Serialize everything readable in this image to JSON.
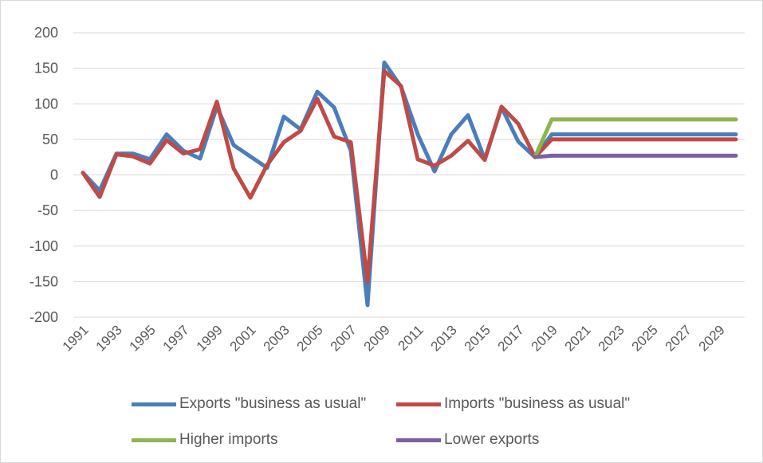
{
  "chart_data": {
    "type": "line",
    "title": "",
    "xlabel": "",
    "ylabel": "",
    "ylim": [
      -200,
      200
    ],
    "yticks": [
      200,
      150,
      100,
      50,
      0,
      -50,
      -100,
      -150,
      -200
    ],
    "x_tick_labels": [
      "1991",
      "1993",
      "1995",
      "1997",
      "1999",
      "2001",
      "2003",
      "2005",
      "2007",
      "2009",
      "2011",
      "2013",
      "2015",
      "2017",
      "2019",
      "2021",
      "2023",
      "2025",
      "2027",
      "2029"
    ],
    "x": [
      1991,
      1992,
      1993,
      1994,
      1995,
      1996,
      1997,
      1998,
      1999,
      2000,
      2001,
      2002,
      2003,
      2004,
      2005,
      2006,
      2007,
      2008,
      2009,
      2010,
      2011,
      2012,
      2013,
      2014,
      2015,
      2016,
      2017,
      2018,
      2019,
      2020,
      2021,
      2022,
      2023,
      2024,
      2025,
      2026,
      2027,
      2028,
      2029,
      2030
    ],
    "grid": true,
    "legend_position": "bottom",
    "series": [
      {
        "name": "Exports \"business as usual\"",
        "color": "#4a7ebb",
        "values": [
          3,
          -22,
          30,
          30,
          22,
          57,
          34,
          23,
          96,
          42,
          26,
          10,
          82,
          64,
          117,
          95,
          34,
          -183,
          158,
          124,
          57,
          5,
          57,
          84,
          22,
          95,
          47,
          25,
          57,
          57,
          57,
          57,
          57,
          57,
          57,
          57,
          57,
          57,
          57,
          57
        ]
      },
      {
        "name": "Imports \"business as usual\"",
        "color": "#be4b48",
        "values": [
          3,
          -31,
          29,
          26,
          16,
          49,
          30,
          36,
          103,
          9,
          -32,
          14,
          46,
          62,
          107,
          54,
          46,
          -150,
          146,
          125,
          22,
          13,
          27,
          48,
          21,
          96,
          72,
          25,
          50,
          50,
          50,
          50,
          50,
          50,
          50,
          50,
          50,
          50,
          50,
          50
        ]
      },
      {
        "name": "Higher imports",
        "color": "#8db54e",
        "values": [
          null,
          null,
          null,
          null,
          null,
          null,
          null,
          null,
          null,
          null,
          null,
          null,
          null,
          null,
          null,
          null,
          null,
          null,
          null,
          null,
          null,
          null,
          null,
          null,
          null,
          null,
          null,
          25,
          78,
          78,
          78,
          78,
          78,
          78,
          78,
          78,
          78,
          78,
          78,
          78
        ]
      },
      {
        "name": "Lower exports",
        "color": "#7d60a0",
        "values": [
          null,
          null,
          null,
          null,
          null,
          null,
          null,
          null,
          null,
          null,
          null,
          null,
          null,
          null,
          null,
          null,
          null,
          null,
          null,
          null,
          null,
          null,
          null,
          null,
          null,
          null,
          null,
          25,
          27,
          27,
          27,
          27,
          27,
          27,
          27,
          27,
          27,
          27,
          27,
          27
        ]
      }
    ]
  }
}
